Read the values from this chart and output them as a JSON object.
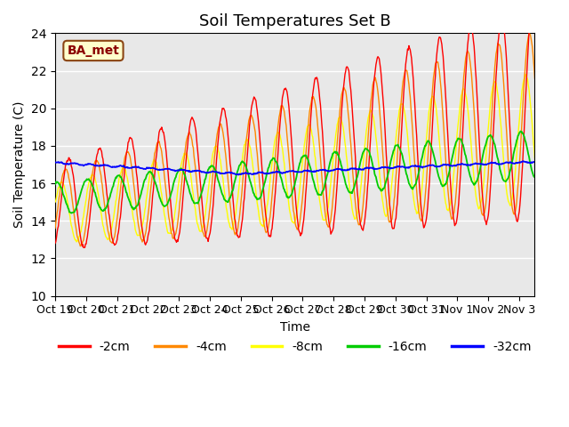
{
  "title": "Soil Temperatures Set B",
  "xlabel": "Time",
  "ylabel": "Soil Temperature (C)",
  "ylim": [
    10,
    24
  ],
  "xlim": [
    0,
    15.5
  ],
  "annotation": "BA_met",
  "legend": [
    "-2cm",
    "-4cm",
    "-8cm",
    "-16cm",
    "-32cm"
  ],
  "colors": [
    "#ff0000",
    "#ff8800",
    "#ffff00",
    "#00cc00",
    "#0000ff"
  ],
  "tick_labels": [
    "Oct 19",
    "Oct 20",
    "Oct 21",
    "Oct 22",
    "Oct 23",
    "Oct 24",
    "Oct 25",
    "Oct 26",
    "Oct 27",
    "Oct 28",
    "Oct 29",
    "Oct 30",
    "Oct 31",
    "Nov 1",
    "Nov 2",
    "Nov 3"
  ],
  "tick_positions": [
    0,
    1,
    2,
    3,
    4,
    5,
    6,
    7,
    8,
    9,
    10,
    11,
    12,
    13,
    14,
    15
  ],
  "yticks": [
    10,
    12,
    14,
    16,
    18,
    20,
    22,
    24
  ],
  "title_fontsize": 13,
  "axis_label_fontsize": 10,
  "tick_fontsize": 9,
  "legend_fontsize": 10,
  "bg_color": "#e8e8e8",
  "grid_color": "#ffffff",
  "ann_fc": "#ffffcc",
  "ann_ec": "#8b4513",
  "ann_tc": "#8b0000"
}
